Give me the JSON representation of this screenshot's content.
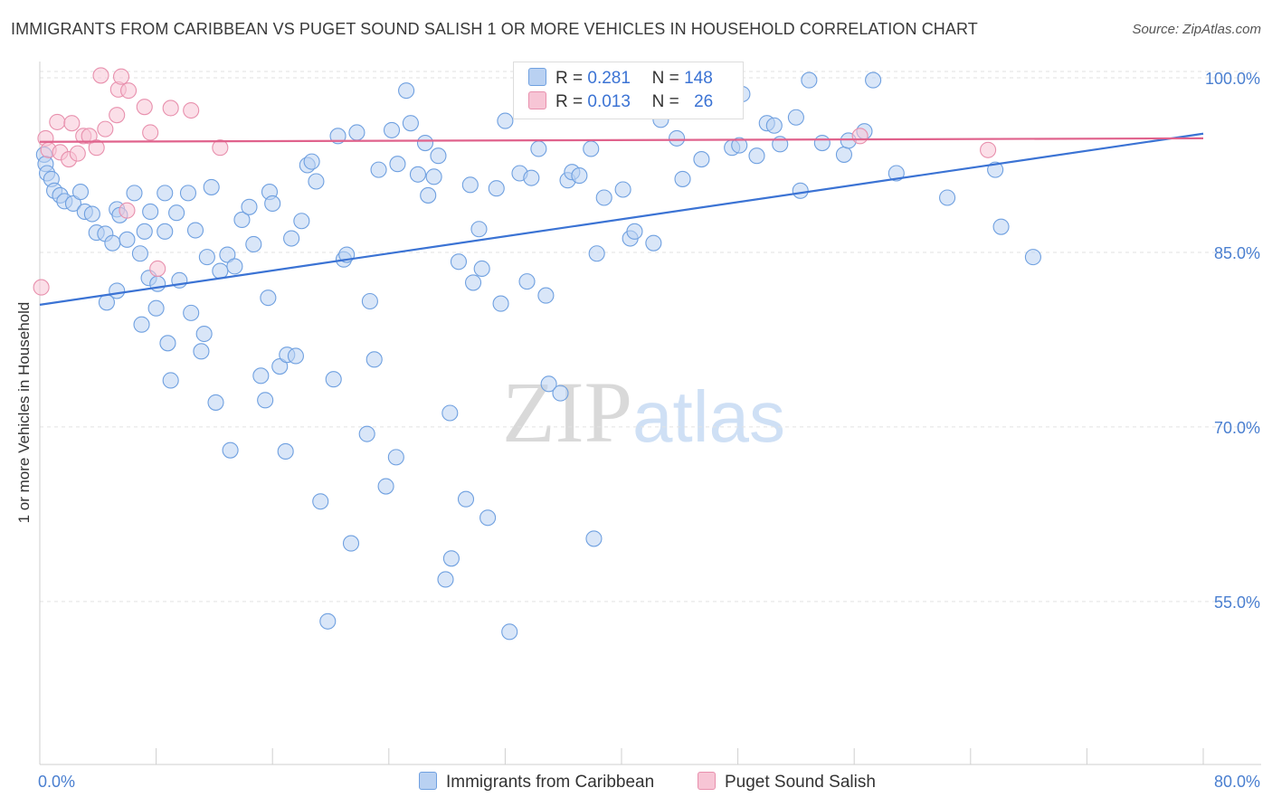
{
  "header": {
    "title": "IMMIGRANTS FROM CARIBBEAN VS PUGET SOUND SALISH 1 OR MORE VEHICLES IN HOUSEHOLD CORRELATION CHART",
    "source": "Source: ZipAtlas.com"
  },
  "watermark": {
    "zip": "ZIP",
    "atlas": "atlas"
  },
  "legend": {
    "r_label": "R =",
    "n_label": "N =",
    "rows": [
      {
        "r": "0.281",
        "n": "148"
      },
      {
        "r": "0.013",
        "n": "26"
      }
    ]
  },
  "chart_data": {
    "type": "scatter",
    "title": "IMMIGRANTS FROM CARIBBEAN VS PUGET SOUND SALISH 1 OR MORE VEHICLES IN HOUSEHOLD CORRELATION CHART",
    "xlabel": "",
    "ylabel": "1 or more Vehicles in Household",
    "xlim": [
      0,
      80
    ],
    "ylim": [
      41,
      101.4
    ],
    "x_ticks": [
      0,
      80
    ],
    "x_tick_labels": [
      "0.0%",
      "80.0%"
    ],
    "y_ticks": [
      55,
      70,
      85,
      100
    ],
    "y_tick_labels": [
      "55.0%",
      "70.0%",
      "85.0%",
      "100.0%"
    ],
    "grid": true,
    "legend_position": "top-center",
    "series": [
      {
        "name": "Immigrants from Caribbean",
        "color": "#6fa0e0",
        "fill": "#b9d1f2",
        "r": 0.281,
        "n": 148,
        "trend": {
          "x": [
            0,
            80
          ],
          "y": [
            80.5,
            95.2
          ]
        },
        "points": [
          [
            0.3,
            93.4
          ],
          [
            0.4,
            92.6
          ],
          [
            0.5,
            91.8
          ],
          [
            0.8,
            91.3
          ],
          [
            1,
            90.3
          ],
          [
            1.4,
            89.9
          ],
          [
            1.7,
            89.4
          ],
          [
            2.3,
            89.2
          ],
          [
            2.8,
            90.2
          ],
          [
            3.1,
            88.5
          ],
          [
            3.6,
            88.3
          ],
          [
            3.9,
            86.7
          ],
          [
            4.5,
            86.6
          ],
          [
            5,
            85.8
          ],
          [
            4.6,
            80.7
          ],
          [
            5.3,
            81.7
          ],
          [
            5.3,
            88.7
          ],
          [
            5.5,
            88.2
          ],
          [
            6,
            86.1
          ],
          [
            6.5,
            90.1
          ],
          [
            6.9,
            84.9
          ],
          [
            7,
            78.8
          ],
          [
            7.2,
            86.8
          ],
          [
            7.5,
            82.8
          ],
          [
            7.6,
            88.5
          ],
          [
            8.6,
            86.8
          ],
          [
            8.1,
            82.3
          ],
          [
            8,
            80.2
          ],
          [
            8.6,
            90.1
          ],
          [
            8.8,
            77.2
          ],
          [
            9,
            74.0
          ],
          [
            9.4,
            88.4
          ],
          [
            9.6,
            82.6
          ],
          [
            10.2,
            90.1
          ],
          [
            10.4,
            79.8
          ],
          [
            10.7,
            86.9
          ],
          [
            11.1,
            76.5
          ],
          [
            11.3,
            78.0
          ],
          [
            11.5,
            84.6
          ],
          [
            11.8,
            90.6
          ],
          [
            12.1,
            72.1
          ],
          [
            12.4,
            83.4
          ],
          [
            12.9,
            84.8
          ],
          [
            13.1,
            68.0
          ],
          [
            13.4,
            83.8
          ],
          [
            13.9,
            87.8
          ],
          [
            14.4,
            88.9
          ],
          [
            14.7,
            85.7
          ],
          [
            15.2,
            74.4
          ],
          [
            15.5,
            72.3
          ],
          [
            15.7,
            81.1
          ],
          [
            15.8,
            90.2
          ],
          [
            16,
            89.2
          ],
          [
            16.5,
            75.2
          ],
          [
            16.9,
            67.9
          ],
          [
            17,
            76.2
          ],
          [
            17.3,
            86.2
          ],
          [
            17.6,
            76.1
          ],
          [
            18,
            87.7
          ],
          [
            18.4,
            92.5
          ],
          [
            18.7,
            92.8
          ],
          [
            19,
            91.1
          ],
          [
            19.3,
            63.6
          ],
          [
            19.8,
            53.3
          ],
          [
            20.2,
            74.1
          ],
          [
            20.5,
            95.0
          ],
          [
            20.9,
            84.4
          ],
          [
            21.1,
            84.8
          ],
          [
            21.4,
            60.0
          ],
          [
            21.8,
            95.3
          ],
          [
            22.5,
            69.4
          ],
          [
            22.7,
            80.8
          ],
          [
            23,
            75.8
          ],
          [
            23.3,
            92.1
          ],
          [
            23.8,
            64.9
          ],
          [
            24.2,
            95.5
          ],
          [
            24.5,
            67.4
          ],
          [
            24.6,
            92.6
          ],
          [
            25.2,
            98.9
          ],
          [
            25.5,
            96.1
          ],
          [
            26,
            91.7
          ],
          [
            26.5,
            94.4
          ],
          [
            26.7,
            89.9
          ],
          [
            27.1,
            91.5
          ],
          [
            27.4,
            93.3
          ],
          [
            27.9,
            56.9
          ],
          [
            28.2,
            71.2
          ],
          [
            28.3,
            58.7
          ],
          [
            28.8,
            84.2
          ],
          [
            29.3,
            63.8
          ],
          [
            29.6,
            90.8
          ],
          [
            29.8,
            82.4
          ],
          [
            30.2,
            87.0
          ],
          [
            30.4,
            83.6
          ],
          [
            30.8,
            62.2
          ],
          [
            31.4,
            90.5
          ],
          [
            31.7,
            80.6
          ],
          [
            32,
            96.3
          ],
          [
            32.3,
            52.4
          ],
          [
            33,
            91.8
          ],
          [
            33.5,
            82.5
          ],
          [
            33.8,
            91.4
          ],
          [
            34.3,
            93.9
          ],
          [
            34.8,
            81.3
          ],
          [
            35,
            73.7
          ],
          [
            35.8,
            72.9
          ],
          [
            36.3,
            91.2
          ],
          [
            36.6,
            91.9
          ],
          [
            37.1,
            91.6
          ],
          [
            37.9,
            93.9
          ],
          [
            38.1,
            60.4
          ],
          [
            38.3,
            84.9
          ],
          [
            38.8,
            89.7
          ],
          [
            39.8,
            98.1
          ],
          [
            40.1,
            90.4
          ],
          [
            40.6,
            86.2
          ],
          [
            40.9,
            86.8
          ],
          [
            41.8,
            98.6
          ],
          [
            42.2,
            85.8
          ],
          [
            42.7,
            96.4
          ],
          [
            43.4,
            99.2
          ],
          [
            43.8,
            94.8
          ],
          [
            44.2,
            91.3
          ],
          [
            45.5,
            93.0
          ],
          [
            45.9,
            98.5
          ],
          [
            46.3,
            99.8
          ],
          [
            46.9,
            99.7
          ],
          [
            47.6,
            94.0
          ],
          [
            48.1,
            94.2
          ],
          [
            48.3,
            98.6
          ],
          [
            49.3,
            93.3
          ],
          [
            50,
            96.1
          ],
          [
            50.5,
            95.9
          ],
          [
            50.9,
            94.3
          ],
          [
            52,
            96.6
          ],
          [
            52.3,
            90.3
          ],
          [
            52.9,
            99.8
          ],
          [
            53.8,
            94.4
          ],
          [
            55.3,
            93.4
          ],
          [
            55.6,
            94.6
          ],
          [
            56.7,
            95.4
          ],
          [
            57.3,
            99.8
          ],
          [
            58.9,
            91.8
          ],
          [
            62.4,
            89.7
          ],
          [
            65.7,
            92.1
          ],
          [
            66.1,
            87.2
          ],
          [
            68.3,
            84.6
          ]
        ]
      },
      {
        "name": "Puget Sound Salish",
        "color": "#e890ad",
        "fill": "#f7c5d5",
        "r": 0.013,
        "n": 26,
        "trend": {
          "x": [
            0,
            80
          ],
          "y": [
            94.5,
            94.8
          ]
        },
        "points": [
          [
            0.1,
            82.0
          ],
          [
            0.4,
            94.8
          ],
          [
            0.6,
            93.8
          ],
          [
            1.2,
            96.2
          ],
          [
            1.4,
            93.6
          ],
          [
            2,
            93.0
          ],
          [
            2.2,
            96.1
          ],
          [
            2.6,
            93.5
          ],
          [
            3,
            95.0
          ],
          [
            3.4,
            95.0
          ],
          [
            3.9,
            94.0
          ],
          [
            4.2,
            100.2
          ],
          [
            4.5,
            95.6
          ],
          [
            5.3,
            96.8
          ],
          [
            5.4,
            99.0
          ],
          [
            5.6,
            100.1
          ],
          [
            6.1,
            98.9
          ],
          [
            6,
            88.6
          ],
          [
            7.2,
            97.5
          ],
          [
            7.6,
            95.3
          ],
          [
            8.1,
            83.6
          ],
          [
            9,
            97.4
          ],
          [
            10.4,
            97.2
          ],
          [
            12.4,
            94.0
          ],
          [
            56.4,
            95.0
          ],
          [
            65.2,
            93.8
          ]
        ]
      }
    ]
  },
  "bottom_legend": [
    {
      "label": "Immigrants from Caribbean"
    },
    {
      "label": "Puget Sound Salish"
    }
  ]
}
